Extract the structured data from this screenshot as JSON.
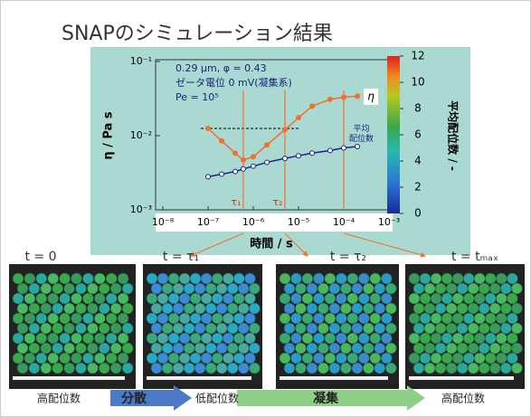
{
  "slide_title": "SNAPのシミュレーション結果",
  "chart_data": {
    "type": "line",
    "annotations": [
      "0.29 μm, φ = 0.43",
      "ゼータ電位 0 mV(凝集系)",
      "Pe = 10⁵"
    ],
    "x_label": "時間 / s",
    "y_label": "η / Pa s",
    "y2_label": "平均配位数 / -",
    "x": [
      1e-07,
      2e-07,
      4e-07,
      6e-07,
      1e-06,
      2e-06,
      5e-06,
      1e-05,
      2e-05,
      5e-05,
      0.0001,
      0.0002
    ],
    "series": [
      {
        "name": "η",
        "color": "#f07030",
        "values": [
          0.0125,
          0.0085,
          0.0058,
          0.0047,
          0.0052,
          0.0075,
          0.012,
          0.0175,
          0.025,
          0.031,
          0.033,
          0.034
        ]
      },
      {
        "name": "平均\n配位数",
        "color": "#1a237e",
        "axis": "y2",
        "values": [
          2.8,
          3.0,
          3.2,
          3.4,
          3.6,
          3.9,
          4.2,
          4.4,
          4.6,
          4.8,
          5.0,
          5.1
        ]
      }
    ],
    "xlog": true,
    "ylog": true,
    "xlim": [
      1e-08,
      0.001
    ],
    "ylim": [
      0.001,
      0.1
    ],
    "y2lim": [
      0,
      12
    ],
    "xticks": [
      {
        "value": 1e-08,
        "label": "10⁻⁸"
      },
      {
        "value": 1e-07,
        "label": "10⁻⁷"
      },
      {
        "value": 1e-06,
        "label": "10⁻⁶"
      },
      {
        "value": 1e-05,
        "label": "10⁻⁵"
      },
      {
        "value": 0.0001,
        "label": "10⁻⁴"
      },
      {
        "value": 0.001,
        "label": "10⁻³"
      }
    ],
    "yticks": [
      {
        "value": 0.001,
        "label": "10⁻³"
      },
      {
        "value": 0.01,
        "label": "10⁻²"
      },
      {
        "value": 0.1,
        "label": "10⁻¹"
      }
    ],
    "y2ticks": [
      0,
      2,
      4,
      6,
      8,
      10,
      12
    ],
    "vlines": [
      {
        "x": 6e-07,
        "label": "τ₁"
      },
      {
        "x": 5e-06,
        "label": "τ₂"
      },
      {
        "x": 0.0001
      }
    ]
  },
  "snapshots": [
    "t = 0",
    "t = τ₁",
    "t = τ₂",
    "t = tₘₐₓ"
  ],
  "flow": [
    "高配位数",
    "分散",
    "低配位数",
    "凝集",
    "高配位数"
  ]
}
